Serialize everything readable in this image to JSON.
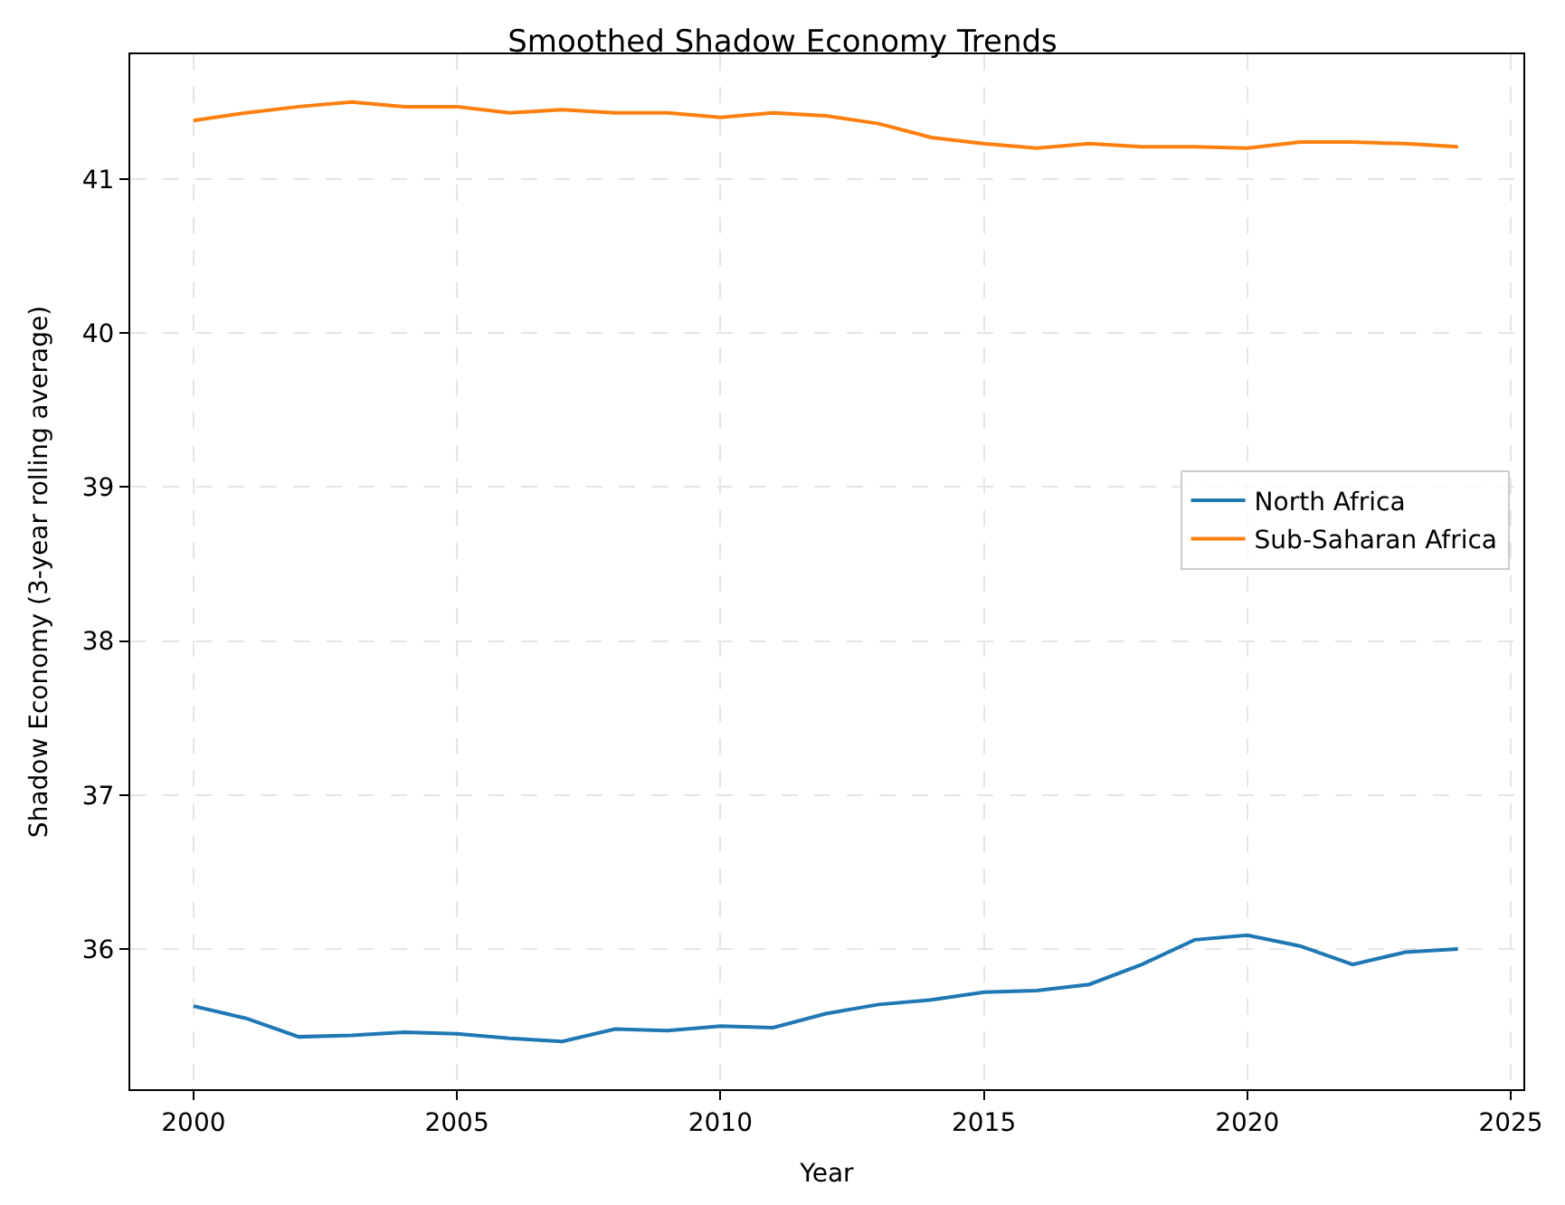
{
  "chart_data": {
    "type": "line",
    "title": "Smoothed Shadow Economy Trends",
    "xlabel": "Year",
    "ylabel": "Shadow Economy (3-year rolling average)",
    "x": [
      2000,
      2001,
      2002,
      2003,
      2004,
      2005,
      2006,
      2007,
      2008,
      2009,
      2010,
      2011,
      2012,
      2013,
      2014,
      2015,
      2016,
      2017,
      2018,
      2019,
      2020,
      2021,
      2022,
      2023,
      2024
    ],
    "series": [
      {
        "name": "North Africa",
        "color": "#1f77b4",
        "values": [
          35.63,
          35.55,
          35.43,
          35.44,
          35.46,
          35.45,
          35.42,
          35.4,
          35.48,
          35.47,
          35.5,
          35.49,
          35.58,
          35.64,
          35.67,
          35.72,
          35.73,
          35.77,
          35.9,
          36.06,
          36.09,
          36.02,
          35.9,
          35.98,
          36.0
        ]
      },
      {
        "name": "Sub-Saharan Africa",
        "color": "#ff7f0e",
        "values": [
          41.38,
          41.43,
          41.47,
          41.5,
          41.47,
          41.47,
          41.43,
          41.45,
          41.43,
          41.43,
          41.4,
          41.43,
          41.41,
          41.36,
          41.27,
          41.23,
          41.2,
          41.23,
          41.21,
          41.21,
          41.2,
          41.24,
          41.24,
          41.23,
          41.21
        ]
      }
    ],
    "xlim": [
      1998.8,
      2025.24
    ],
    "xticks": [
      2000,
      2005,
      2010,
      2015,
      2020,
      2025
    ],
    "ylim": [
      35.09,
      41.81
    ],
    "yticks": [
      36,
      37,
      38,
      39,
      40,
      41
    ],
    "grid": true,
    "legend": "right",
    "line_style": "solid",
    "marker": "none"
  }
}
